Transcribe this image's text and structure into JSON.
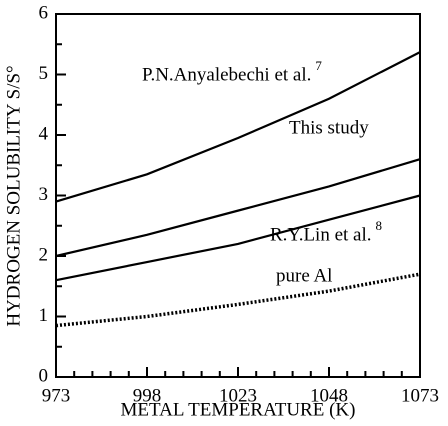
{
  "chart_data": {
    "type": "line",
    "xlabel": "METAL TEMPERATURE (K)",
    "ylabel": "HYDROGEN SOLUBILITY S/S°",
    "x": [
      973,
      998,
      1023,
      1048,
      1073
    ],
    "series": [
      {
        "name": "P.N.Anyalebechi et al.",
        "ref": "7",
        "color": "#000000",
        "style": "solid",
        "values": [
          2.9,
          3.35,
          3.95,
          4.6,
          5.37
        ]
      },
      {
        "name": "This study",
        "color": "#000000",
        "style": "solid",
        "values": [
          2.0,
          2.35,
          2.75,
          3.15,
          3.6
        ]
      },
      {
        "name": "R.Y.Lin et al.",
        "ref": "8",
        "color": "#000000",
        "style": "solid",
        "values": [
          1.6,
          1.9,
          2.2,
          2.6,
          3.0
        ]
      },
      {
        "name": "pure Al",
        "color": "#000000",
        "style": "dotted",
        "values": [
          0.85,
          1.0,
          1.2,
          1.42,
          1.7
        ]
      }
    ],
    "xlim": [
      973,
      1073
    ],
    "xticks": [
      973,
      998,
      1023,
      1048,
      1073
    ],
    "xminorticks": [
      978,
      983,
      988,
      993,
      1003,
      1008,
      1013,
      1018,
      1028,
      1033,
      1038,
      1043,
      1053,
      1058,
      1063,
      1068
    ],
    "ylim": [
      0,
      6
    ],
    "yticks": [
      0,
      1,
      2,
      3,
      4,
      5,
      6
    ],
    "yminorticks": [
      0.5,
      1.5,
      2.5,
      3.5,
      4.5,
      5.5
    ],
    "grid": false,
    "legend": false
  }
}
